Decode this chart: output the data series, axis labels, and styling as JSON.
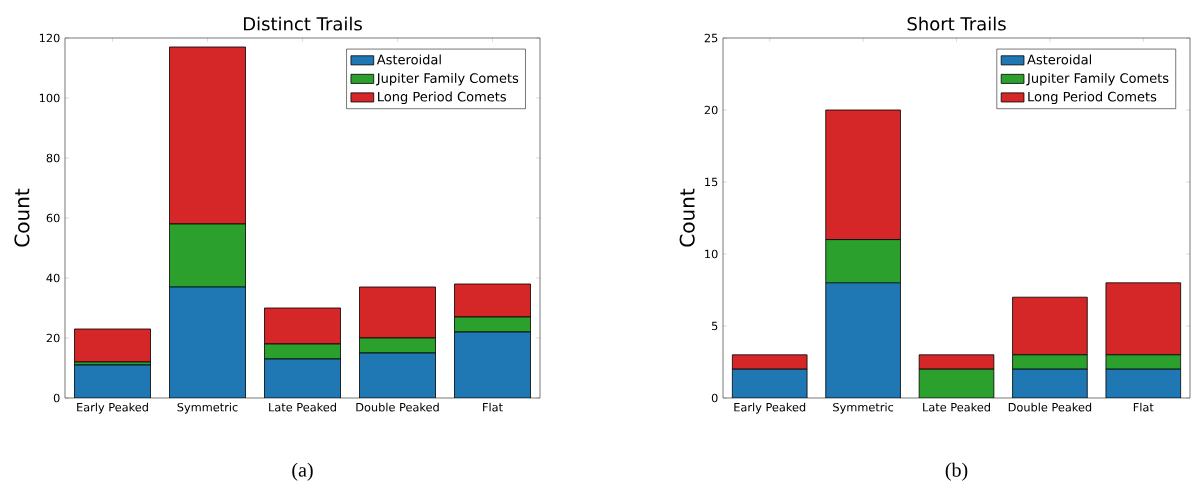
{
  "chart_data": [
    {
      "type": "bar",
      "title": "Distinct Trails",
      "ylabel": "Count",
      "stacked": true,
      "legend": "top right",
      "categories": [
        "Early Peaked",
        "Symmetric",
        "Late Peaked",
        "Double Peaked",
        "Flat"
      ],
      "series": [
        {
          "name": "Asteroidal",
          "color": "#1f77b4",
          "values": [
            11,
            37,
            13,
            15,
            22
          ]
        },
        {
          "name": "Jupiter Family Comets",
          "color": "#2ca02c",
          "values": [
            1,
            21,
            5,
            5,
            5
          ]
        },
        {
          "name": "Long Period Comets",
          "color": "#d62728",
          "values": [
            11,
            59,
            12,
            17,
            11
          ]
        }
      ],
      "ylim": [
        0,
        120
      ],
      "yticks": [
        0,
        20,
        40,
        60,
        80,
        100,
        120
      ],
      "annotations": [
        "(a)"
      ]
    },
    {
      "type": "bar",
      "title": "Short Trails",
      "ylabel": "Count",
      "stacked": true,
      "legend": "top right",
      "categories": [
        "Early Peaked",
        "Symmetric",
        "Late Peaked",
        "Double Peaked",
        "Flat"
      ],
      "series": [
        {
          "name": "Asteroidal",
          "color": "#1f77b4",
          "values": [
            2,
            8,
            0,
            2,
            2
          ]
        },
        {
          "name": "Jupiter Family Comets",
          "color": "#2ca02c",
          "values": [
            0,
            3,
            2,
            1,
            1
          ]
        },
        {
          "name": "Long Period Comets",
          "color": "#d62728",
          "values": [
            1,
            9,
            1,
            4,
            5
          ]
        }
      ],
      "ylim": [
        0,
        25
      ],
      "yticks": [
        0,
        5,
        10,
        15,
        20,
        25
      ],
      "annotations": [
        "(b)"
      ]
    }
  ]
}
